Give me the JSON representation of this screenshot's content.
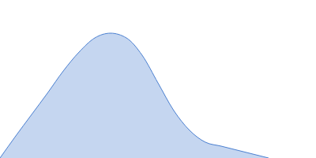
{
  "chart_data": {
    "type": "area",
    "x": [
      0,
      20,
      40,
      60,
      80,
      100,
      120,
      140,
      160,
      180,
      200,
      220,
      240,
      260,
      280,
      300,
      320,
      340
    ],
    "values": [
      0,
      28,
      55,
      82,
      110,
      134,
      152,
      158,
      152,
      130,
      95,
      60,
      35,
      20,
      15,
      10,
      5,
      0
    ],
    "color": "#4a7fd0",
    "xlim": [
      0,
      400
    ],
    "ylim": [
      0,
      200
    ],
    "tick_labels": false,
    "grid": false
  }
}
